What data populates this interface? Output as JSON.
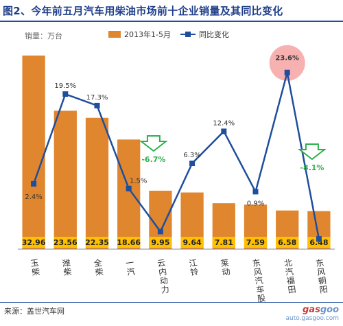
{
  "title": "图2、今年前五月汽车用柴油市场前十企业销量及其同比变化",
  "unit_label": "销量：万台",
  "legend": {
    "bar": "2013年1-5月",
    "line": "同比变化"
  },
  "source": "来源：盖世汽车网",
  "logo": {
    "brand_prefix": "gas",
    "brand_suffix": "goo",
    "url": "auto.gasgoo.com"
  },
  "colors": {
    "bar": "#e0862f",
    "line": "#1f4e9c",
    "value_box": "#ffc000",
    "negative": "#2db04b",
    "highlight": "#f6a3a3"
  },
  "chart_data": {
    "type": "bar",
    "categories": [
      "玉柴",
      "潍柴",
      "全柴",
      "一汽",
      "云内动力",
      "江铃",
      "莱动",
      "东风汽车股份",
      "北汽福田",
      "东风朝阳"
    ],
    "series": [
      {
        "name": "2013年1-5月",
        "type": "bar",
        "values": [
          32.96,
          23.56,
          22.35,
          18.66,
          9.95,
          9.64,
          7.81,
          7.59,
          6.58,
          6.48
        ]
      },
      {
        "name": "同比变化",
        "type": "line",
        "values": [
          2.4,
          19.5,
          17.3,
          1.5,
          -6.7,
          6.3,
          12.4,
          0.9,
          23.6,
          -8.1
        ],
        "unit": "%"
      }
    ],
    "bar_value_labels": [
      "32.96",
      "23.56",
      "22.35",
      "18.66",
      "9.95",
      "9.64",
      "7.81",
      "7.59",
      "6.58",
      "6.48"
    ],
    "line_value_labels": [
      "2.4%",
      "19.5%",
      "17.3%",
      "1.5%",
      "-6.7%",
      "6.3%",
      "12.4%",
      "0.9%",
      "23.6%",
      "-8.1%"
    ],
    "bar_ylim": [
      0,
      34
    ],
    "line_ylim": [
      -9,
      25
    ],
    "grid": false,
    "legend_position": "top"
  }
}
